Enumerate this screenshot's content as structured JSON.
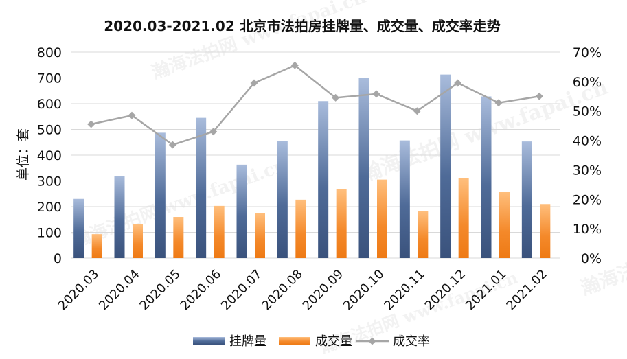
{
  "chart_data": {
    "type": "bar",
    "title": "2020.03-2021.02 北京市法拍房挂牌量、成交量、成交率走势",
    "ylabel": "单位：套",
    "categories": [
      "2020.03",
      "2020.04",
      "2020.05",
      "2020.06",
      "2020.07",
      "2020.08",
      "2020.09",
      "2020.10",
      "2020.11",
      "2020.12",
      "2021.01",
      "2021.02"
    ],
    "ylim": [
      0,
      800
    ],
    "y_ticks": [
      "0",
      "100",
      "200",
      "300",
      "400",
      "500",
      "600",
      "700",
      "800"
    ],
    "y2lim": [
      0,
      0.7
    ],
    "y2_ticks": [
      "0%",
      "10%",
      "20%",
      "30%",
      "40%",
      "50%",
      "60%",
      "70%"
    ],
    "grid": true,
    "legend_position": "bottom",
    "series": [
      {
        "name": "挂牌量",
        "kind": "bar",
        "axis": "left",
        "color": "#3f5a86",
        "values": [
          230,
          320,
          487,
          545,
          363,
          455,
          610,
          700,
          457,
          713,
          628,
          453
        ]
      },
      {
        "name": "成交量",
        "kind": "bar",
        "axis": "left",
        "color": "#f07f1e",
        "values": [
          93,
          131,
          160,
          203,
          174,
          227,
          267,
          305,
          182,
          312,
          258,
          210
        ]
      },
      {
        "name": "成交率",
        "kind": "line",
        "axis": "right",
        "color": "#a6a6a6",
        "values": [
          0.455,
          0.485,
          0.385,
          0.43,
          0.595,
          0.655,
          0.545,
          0.558,
          0.5,
          0.595,
          0.528,
          0.55
        ]
      }
    ],
    "watermark": "瀚海法拍网 www.fapai.cn"
  }
}
